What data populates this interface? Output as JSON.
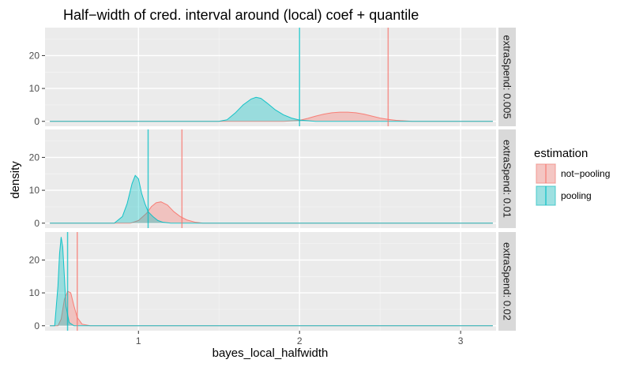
{
  "chart_data": {
    "type": "area",
    "title": "Half−width of cred. interval around (local) coef + quantile",
    "xlabel": "bayes_local_halfwidth",
    "ylabel": "density",
    "xlim": [
      0.42,
      3.22
    ],
    "ylim": [
      -1.5,
      28.5
    ],
    "x_ticks": [
      1,
      2,
      3
    ],
    "x_tick_labels": [
      "1",
      "2",
      "3"
    ],
    "y_ticks": [
      0,
      10,
      20
    ],
    "y_tick_labels": [
      "0",
      "10",
      "20"
    ],
    "grid": true,
    "legend": {
      "title": "estimation",
      "position": "right",
      "entries": [
        "not−pooling",
        "pooling"
      ]
    },
    "colors": {
      "not-pooling": "#f8766d",
      "pooling": "#00bfc4",
      "panel_bg": "#ebebeb",
      "strip_bg": "#d9d9d9"
    },
    "facet_label_prefix": "extraSpend: ",
    "facets": [
      {
        "label": "extraSpend: 0.005",
        "series": [
          {
            "name": "not−pooling",
            "quantile_line": 2.55,
            "x": [
              0.45,
              1.9,
              2.0,
              2.05,
              2.1,
              2.15,
              2.2,
              2.25,
              2.3,
              2.35,
              2.4,
              2.45,
              2.5,
              2.55,
              2.6,
              2.7,
              3.2
            ],
            "y": [
              0,
              0,
              0.3,
              0.9,
              1.6,
              2.2,
              2.6,
              2.8,
              2.8,
              2.6,
              2.2,
              1.6,
              1.0,
              0.6,
              0.3,
              0,
              0
            ]
          },
          {
            "name": "pooling",
            "quantile_line": 2.0,
            "x": [
              0.45,
              1.5,
              1.55,
              1.6,
              1.65,
              1.7,
              1.73,
              1.76,
              1.8,
              1.85,
              1.9,
              1.95,
              2.0,
              2.1,
              3.2
            ],
            "y": [
              0,
              0,
              0.5,
              2.5,
              5.0,
              6.8,
              7.3,
              7.0,
              5.5,
              3.5,
              2.0,
              1.0,
              0.4,
              0,
              0
            ]
          }
        ]
      },
      {
        "label": "extraSpend: 0.01",
        "series": [
          {
            "name": "not−pooling",
            "quantile_line": 1.27,
            "x": [
              0.45,
              0.95,
              1.0,
              1.05,
              1.08,
              1.11,
              1.14,
              1.18,
              1.22,
              1.26,
              1.3,
              1.35,
              1.4,
              3.2
            ],
            "y": [
              0,
              0,
              0.8,
              3.0,
              5.0,
              6.2,
              6.5,
              5.5,
              3.5,
              2.0,
              1.0,
              0.3,
              0,
              0
            ]
          },
          {
            "name": "pooling",
            "quantile_line": 1.06,
            "x": [
              0.45,
              0.85,
              0.9,
              0.93,
              0.96,
              0.98,
              1.0,
              1.02,
              1.04,
              1.06,
              1.09,
              1.12,
              1.15,
              1.2,
              3.2
            ],
            "y": [
              0,
              0,
              2.0,
              6.0,
              12.0,
              14.5,
              13.5,
              9.0,
              6.0,
              3.5,
              2.0,
              0.8,
              0.3,
              0,
              0
            ]
          }
        ]
      },
      {
        "label": "extraSpend: 0.02",
        "series": [
          {
            "name": "not−pooling",
            "quantile_line": 0.62,
            "x": [
              0.45,
              0.5,
              0.52,
              0.54,
              0.56,
              0.58,
              0.6,
              0.62,
              0.65,
              0.7,
              3.2
            ],
            "y": [
              0,
              0,
              2.0,
              8.0,
              10.5,
              10.0,
              6.0,
              2.5,
              0.5,
              0,
              0
            ]
          },
          {
            "name": "pooling",
            "quantile_line": 0.56,
            "x": [
              0.45,
              0.48,
              0.5,
              0.51,
              0.52,
              0.53,
              0.54,
              0.55,
              0.57,
              0.6,
              3.2
            ],
            "y": [
              0,
              0,
              12.0,
              22.0,
              27.0,
              24.0,
              15.0,
              6.0,
              1.0,
              0,
              0
            ]
          }
        ]
      }
    ]
  }
}
